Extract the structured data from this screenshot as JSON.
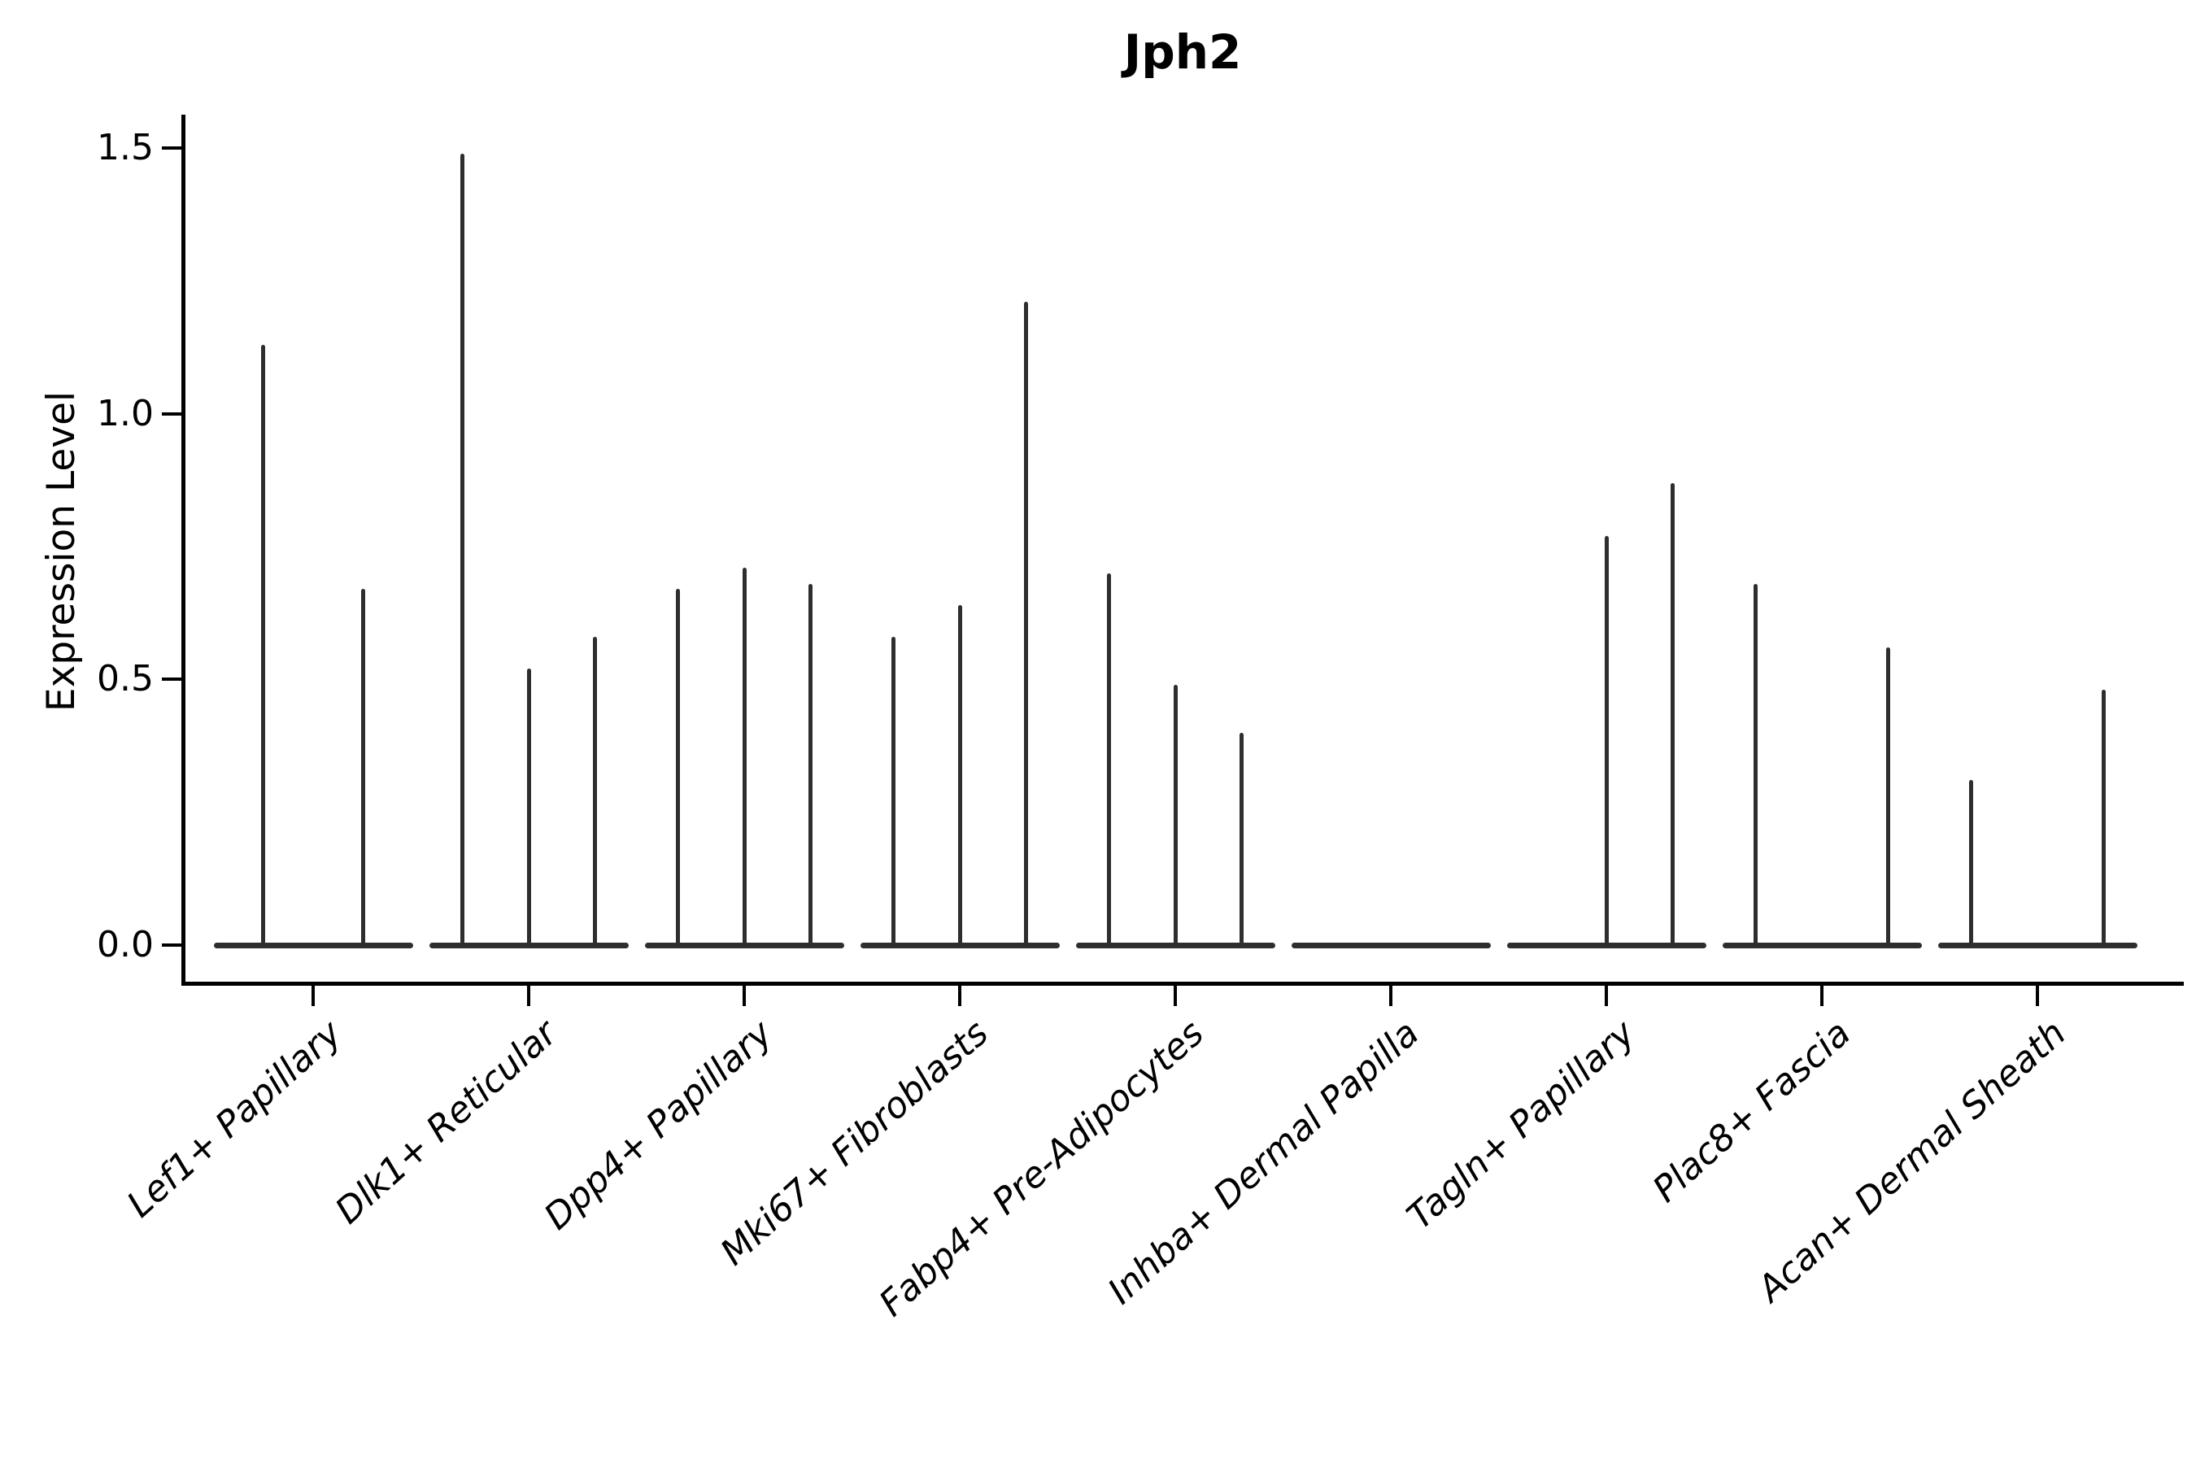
{
  "title": "Jph2",
  "ylabel": "Expression Level",
  "chart_data": {
    "type": "violin",
    "title": "Jph2",
    "xlabel": "",
    "ylabel": "Expression Level",
    "ylim": [
      0,
      1.55
    ],
    "yticks": [
      0.0,
      0.5,
      1.0,
      1.5
    ],
    "grid": false,
    "legend": "none",
    "description": "Thin violin plots of Jph2 expression per fibroblast cell type; most cells at 0 (flat wide base) with narrow tails reaching the listed maximum expression. Some categories contain multiple violins (sub-slots); slots without a tail are all-zero.",
    "categories": [
      "Lef1+ Papillary",
      "Dlk1+ Reticular",
      "Dpp4+ Papillary",
      "Mki67+ Fibroblasts",
      "Fabp4+ Pre-Adipocytes",
      "Inhba+ Dermal Papilla",
      "Tagln+ Papillary",
      "Plac8+ Fascia",
      "Acan+ Dermal Sheath"
    ],
    "groups": [
      {
        "category": "Lef1+ Papillary",
        "n_slots": 2,
        "violins": [
          {
            "slot": 1,
            "max": 1.13
          },
          {
            "slot": 2,
            "max": 0.67
          }
        ]
      },
      {
        "category": "Dlk1+ Reticular",
        "n_slots": 3,
        "violins": [
          {
            "slot": 1,
            "max": 1.49
          },
          {
            "slot": 2,
            "max": 0.52
          },
          {
            "slot": 3,
            "max": 0.58
          }
        ]
      },
      {
        "category": "Dpp4+ Papillary",
        "n_slots": 3,
        "violins": [
          {
            "slot": 1,
            "max": 0.67
          },
          {
            "slot": 2,
            "max": 0.71
          },
          {
            "slot": 3,
            "max": 0.68
          }
        ]
      },
      {
        "category": "Mki67+ Fibroblasts",
        "n_slots": 3,
        "violins": [
          {
            "slot": 1,
            "max": 0.58
          },
          {
            "slot": 2,
            "max": 0.64
          },
          {
            "slot": 3,
            "max": 1.21
          }
        ]
      },
      {
        "category": "Fabp4+ Pre-Adipocytes",
        "n_slots": 3,
        "violins": [
          {
            "slot": 1,
            "max": 0.7
          },
          {
            "slot": 2,
            "max": 0.49
          },
          {
            "slot": 3,
            "max": 0.4
          }
        ]
      },
      {
        "category": "Inhba+ Dermal Papilla",
        "n_slots": 3,
        "violins": []
      },
      {
        "category": "Tagln+ Papillary",
        "n_slots": 3,
        "violins": [
          {
            "slot": 2,
            "max": 0.77
          },
          {
            "slot": 3,
            "max": 0.87
          }
        ]
      },
      {
        "category": "Plac8+ Fascia",
        "n_slots": 3,
        "violins": [
          {
            "slot": 1,
            "max": 0.68
          },
          {
            "slot": 3,
            "max": 0.56
          }
        ]
      },
      {
        "category": "Acan+ Dermal Sheath",
        "n_slots": 3,
        "violins": [
          {
            "slot": 1,
            "max": 0.31
          },
          {
            "slot": 3,
            "max": 0.48
          }
        ]
      }
    ],
    "colors": {
      "violin": "#2e2e2e",
      "axis": "#000000",
      "text": "#000000",
      "background": "#ffffff"
    }
  }
}
